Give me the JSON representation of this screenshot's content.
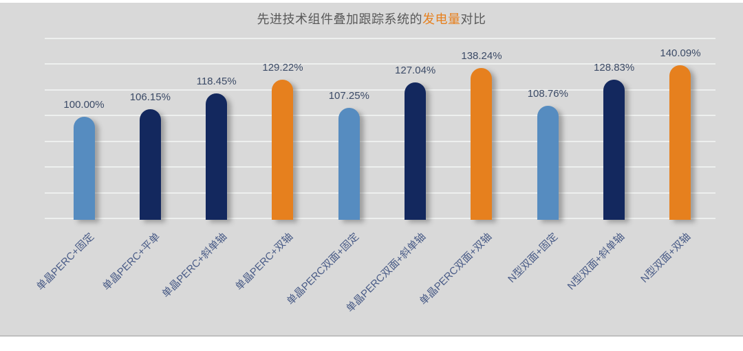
{
  "title": {
    "prefix": "先进技术组件叠加跟踪系统的",
    "highlight": "发电量",
    "suffix": "对比"
  },
  "colors": {
    "canvas_background": "#d9d9d9",
    "gridline": "#eef0ef",
    "title_text": "#595959",
    "title_highlight": "#e6801e",
    "value_label": "#3b4a66",
    "category_label": "#4a5c87",
    "bar_light_blue": "#568cc0",
    "bar_dark_navy": "#13285e",
    "bar_orange": "#e6801e"
  },
  "chart_data": {
    "type": "bar",
    "title": "先进技术组件叠加跟踪系统的发电量对比",
    "categories": [
      "单晶PERC+固定",
      "单晶PERC+平单",
      "单晶PERC+斜单轴",
      "单晶PERC+双轴",
      "单晶PERC双面+固定",
      "单晶PERC双面+斜单轴",
      "单晶PERC双面+双轴",
      "N型双面+固定",
      "N型双面+斜单轴",
      "N型双面+双轴"
    ],
    "values": [
      100.0,
      106.15,
      118.45,
      129.22,
      107.25,
      127.04,
      138.24,
      108.76,
      128.83,
      140.09
    ],
    "value_labels": [
      "100.00%",
      "106.15%",
      "118.45%",
      "129.22%",
      "107.25%",
      "127.04%",
      "138.24%",
      "108.76%",
      "128.83%",
      "140.09%"
    ],
    "bar_colors": [
      "#568cc0",
      "#13285e",
      "#13285e",
      "#e6801e",
      "#568cc0",
      "#13285e",
      "#e6801e",
      "#568cc0",
      "#13285e",
      "#e6801e"
    ],
    "xlabel": "",
    "ylabel": "",
    "ylim": [
      20,
      160
    ],
    "grid_step": 20,
    "grid": true,
    "legend": false,
    "y_tick_labels_visible": false
  }
}
